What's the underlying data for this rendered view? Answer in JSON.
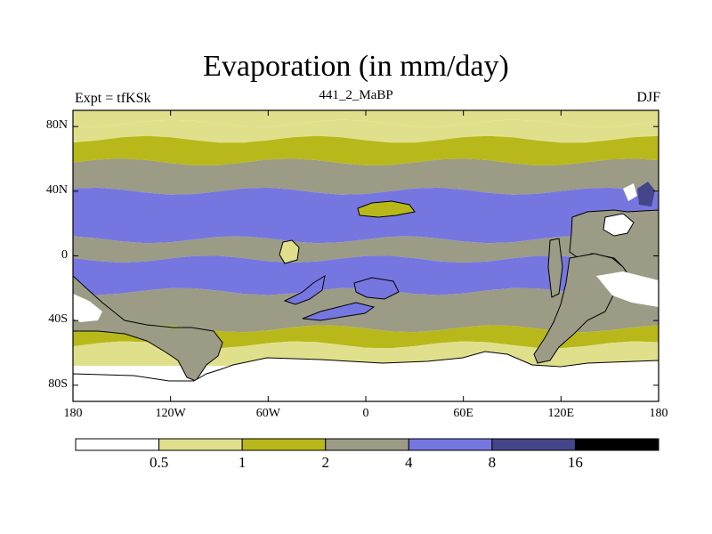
{
  "chart_data": {
    "type": "heatmap",
    "title": "Evaporation (in mm/day)",
    "left_string": "Expt = tfKSk",
    "center_string": "441_2_MaBP",
    "right_string": "DJF",
    "x_ticks": [
      "180",
      "120W",
      "60W",
      "0",
      "60E",
      "120E",
      "180"
    ],
    "x_tick_values": [
      -180,
      -120,
      -60,
      0,
      60,
      120,
      180
    ],
    "y_ticks": [
      "80N",
      "40N",
      "0",
      "40S",
      "80S"
    ],
    "y_tick_values": [
      80,
      40,
      0,
      -40,
      -80
    ],
    "xlim": [
      -180,
      180
    ],
    "ylim": [
      -90,
      90
    ],
    "contour_levels": [
      0.5,
      1,
      2,
      4,
      8,
      16
    ],
    "level_labels": [
      "0.5",
      "1",
      "2",
      "4",
      "8",
      "16"
    ],
    "colorbar_colors": [
      "#ffffff",
      "#e0e08c",
      "#b8b81a",
      "#9b9b86",
      "#7676e0",
      "#45458a",
      "#000000"
    ],
    "zonal_bands": [
      {
        "lat_range": [
          82,
          90
        ],
        "value_class": 1
      },
      {
        "lat_range": [
          72,
          82
        ],
        "value_class": 1
      },
      {
        "lat_range": [
          58,
          72
        ],
        "value_class": 2
      },
      {
        "lat_range": [
          40,
          58
        ],
        "value_class": 3
      },
      {
        "lat_range": [
          10,
          40
        ],
        "value_class": 4
      },
      {
        "lat_range": [
          -2,
          10
        ],
        "value_class": 3
      },
      {
        "lat_range": [
          -22,
          -2
        ],
        "value_class": 4
      },
      {
        "lat_range": [
          -45,
          -22
        ],
        "value_class": 3
      },
      {
        "lat_range": [
          -55,
          -45
        ],
        "value_class": 2
      },
      {
        "lat_range": [
          -68,
          -55
        ],
        "value_class": 1
      },
      {
        "lat_range": [
          -90,
          -68
        ],
        "value_class": 0
      }
    ]
  }
}
